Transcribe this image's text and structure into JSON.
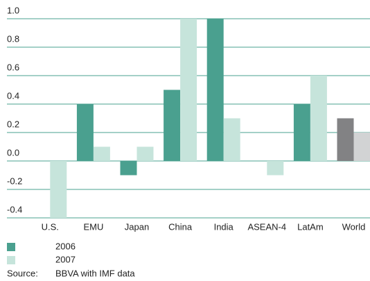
{
  "chart_data": {
    "type": "bar",
    "categories": [
      "U.S.",
      "EMU",
      "Japan",
      "China",
      "India",
      "ASEAN-4",
      "LatAm",
      "World"
    ],
    "series": [
      {
        "name": "2006",
        "color": "#4aa08f",
        "colors": [
          "#4aa08f",
          "#4aa08f",
          "#4aa08f",
          "#4aa08f",
          "#4aa08f",
          "#4aa08f",
          "#4aa08f",
          "#828284"
        ],
        "values": [
          0,
          0.4,
          -0.1,
          0.5,
          1.0,
          0,
          0.4,
          0.3
        ]
      },
      {
        "name": "2007",
        "color": "#c6e4db",
        "colors": [
          "#c6e4db",
          "#c6e4db",
          "#c6e4db",
          "#c6e4db",
          "#c6e4db",
          "#c6e4db",
          "#c6e4db",
          "#d2d3d4"
        ],
        "values": [
          -0.4,
          0.1,
          0.1,
          1.0,
          0.3,
          -0.1,
          0.6,
          0.2
        ]
      }
    ],
    "ylim": [
      -0.4,
      1.0
    ],
    "yticks": [
      {
        "value": 1.0,
        "label": "1.0"
      },
      0.8,
      0.6,
      0.4,
      0.2,
      {
        "value": 0,
        "label": "0.0"
      },
      -0.2,
      -0.4
    ],
    "grid": true,
    "source_label": "Source:",
    "source": "BBVA with IMF data"
  }
}
